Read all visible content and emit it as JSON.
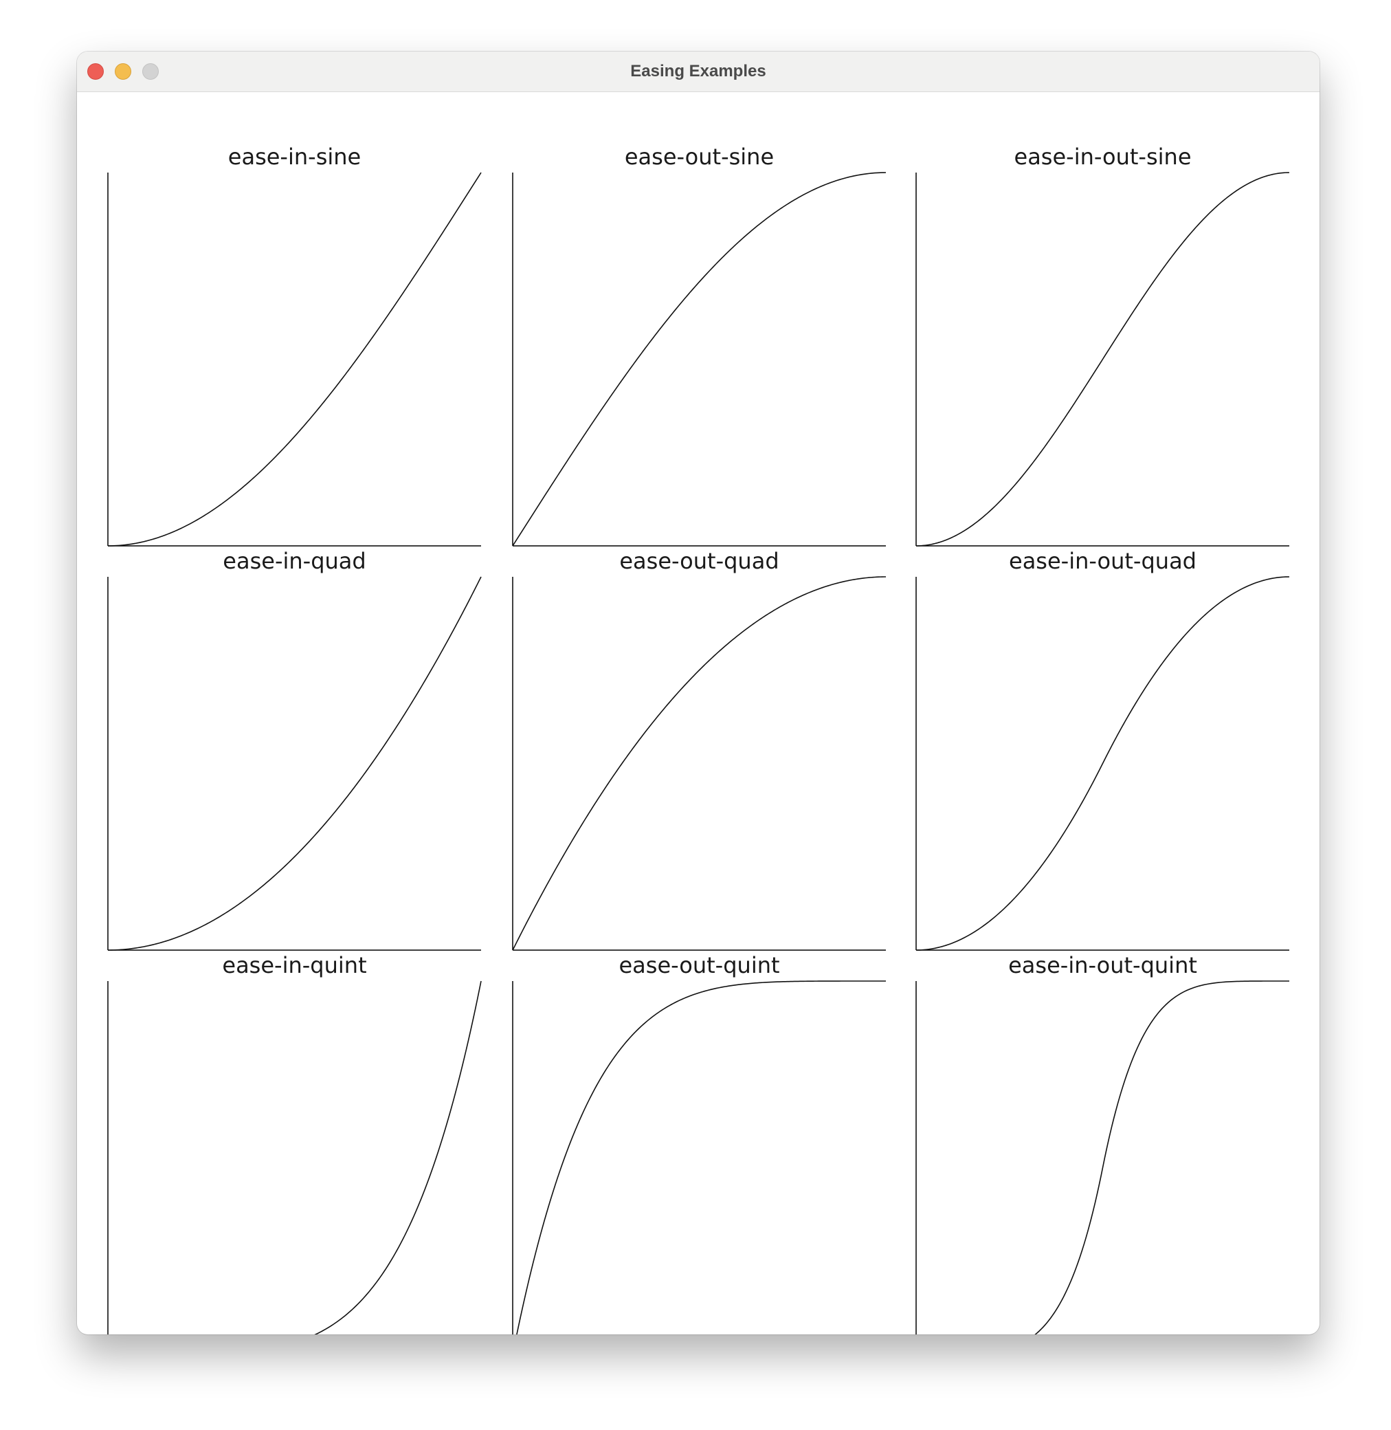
{
  "window": {
    "title": "Easing Examples"
  },
  "chart_data": [
    {
      "type": "line",
      "title": "ease-in-sine",
      "easing": "ease-in-sine",
      "xlim": [
        0,
        1
      ],
      "ylim": [
        0,
        1
      ],
      "x": [
        0,
        0.1,
        0.2,
        0.3,
        0.4,
        0.5,
        0.6,
        0.7,
        0.8,
        0.9,
        1
      ],
      "y": [
        0,
        0.012,
        0.049,
        0.109,
        0.191,
        0.293,
        0.412,
        0.546,
        0.691,
        0.844,
        1
      ]
    },
    {
      "type": "line",
      "title": "ease-out-sine",
      "easing": "ease-out-sine",
      "xlim": [
        0,
        1
      ],
      "ylim": [
        0,
        1
      ],
      "x": [
        0,
        0.1,
        0.2,
        0.3,
        0.4,
        0.5,
        0.6,
        0.7,
        0.8,
        0.9,
        1
      ],
      "y": [
        0,
        0.156,
        0.309,
        0.454,
        0.588,
        0.707,
        0.809,
        0.891,
        0.951,
        0.988,
        1
      ]
    },
    {
      "type": "line",
      "title": "ease-in-out-sine",
      "easing": "ease-in-out-sine",
      "xlim": [
        0,
        1
      ],
      "ylim": [
        0,
        1
      ],
      "x": [
        0,
        0.1,
        0.2,
        0.3,
        0.4,
        0.5,
        0.6,
        0.7,
        0.8,
        0.9,
        1
      ],
      "y": [
        0,
        0.024,
        0.095,
        0.206,
        0.345,
        0.5,
        0.655,
        0.794,
        0.905,
        0.976,
        1
      ]
    },
    {
      "type": "line",
      "title": "ease-in-quad",
      "easing": "ease-in-quad",
      "xlim": [
        0,
        1
      ],
      "ylim": [
        0,
        1
      ],
      "x": [
        0,
        0.1,
        0.2,
        0.3,
        0.4,
        0.5,
        0.6,
        0.7,
        0.8,
        0.9,
        1
      ],
      "y": [
        0,
        0.01,
        0.04,
        0.09,
        0.16,
        0.25,
        0.36,
        0.49,
        0.64,
        0.81,
        1
      ]
    },
    {
      "type": "line",
      "title": "ease-out-quad",
      "easing": "ease-out-quad",
      "xlim": [
        0,
        1
      ],
      "ylim": [
        0,
        1
      ],
      "x": [
        0,
        0.1,
        0.2,
        0.3,
        0.4,
        0.5,
        0.6,
        0.7,
        0.8,
        0.9,
        1
      ],
      "y": [
        0,
        0.19,
        0.36,
        0.51,
        0.64,
        0.75,
        0.84,
        0.91,
        0.96,
        0.99,
        1
      ]
    },
    {
      "type": "line",
      "title": "ease-in-out-quad",
      "easing": "ease-in-out-quad",
      "xlim": [
        0,
        1
      ],
      "ylim": [
        0,
        1
      ],
      "x": [
        0,
        0.1,
        0.2,
        0.3,
        0.4,
        0.5,
        0.6,
        0.7,
        0.8,
        0.9,
        1
      ],
      "y": [
        0,
        0.02,
        0.08,
        0.18,
        0.32,
        0.5,
        0.68,
        0.82,
        0.92,
        0.98,
        1
      ]
    },
    {
      "type": "line",
      "title": "ease-in-quint",
      "easing": "ease-in-quint",
      "xlim": [
        0,
        1
      ],
      "ylim": [
        0,
        1
      ],
      "x": [
        0,
        0.1,
        0.2,
        0.3,
        0.4,
        0.5,
        0.6,
        0.7,
        0.8,
        0.9,
        1
      ],
      "y": [
        0,
        1e-05,
        0.0003,
        0.0024,
        0.0102,
        0.0313,
        0.0778,
        0.1681,
        0.3277,
        0.5905,
        1
      ]
    },
    {
      "type": "line",
      "title": "ease-out-quint",
      "easing": "ease-out-quint",
      "xlim": [
        0,
        1
      ],
      "ylim": [
        0,
        1
      ],
      "x": [
        0,
        0.1,
        0.2,
        0.3,
        0.4,
        0.5,
        0.6,
        0.7,
        0.8,
        0.9,
        1
      ],
      "y": [
        0,
        0.4095,
        0.6723,
        0.8319,
        0.9222,
        0.9688,
        0.9898,
        0.9976,
        0.9997,
        0.99999,
        1
      ]
    },
    {
      "type": "line",
      "title": "ease-in-out-quint",
      "easing": "ease-in-out-quint",
      "xlim": [
        0,
        1
      ],
      "ylim": [
        0,
        1
      ],
      "x": [
        0,
        0.1,
        0.2,
        0.3,
        0.4,
        0.5,
        0.6,
        0.7,
        0.8,
        0.9,
        1
      ],
      "y": [
        0,
        0.0002,
        0.0051,
        0.0389,
        0.1638,
        0.5,
        0.8362,
        0.9611,
        0.9949,
        0.9998,
        1
      ]
    }
  ]
}
